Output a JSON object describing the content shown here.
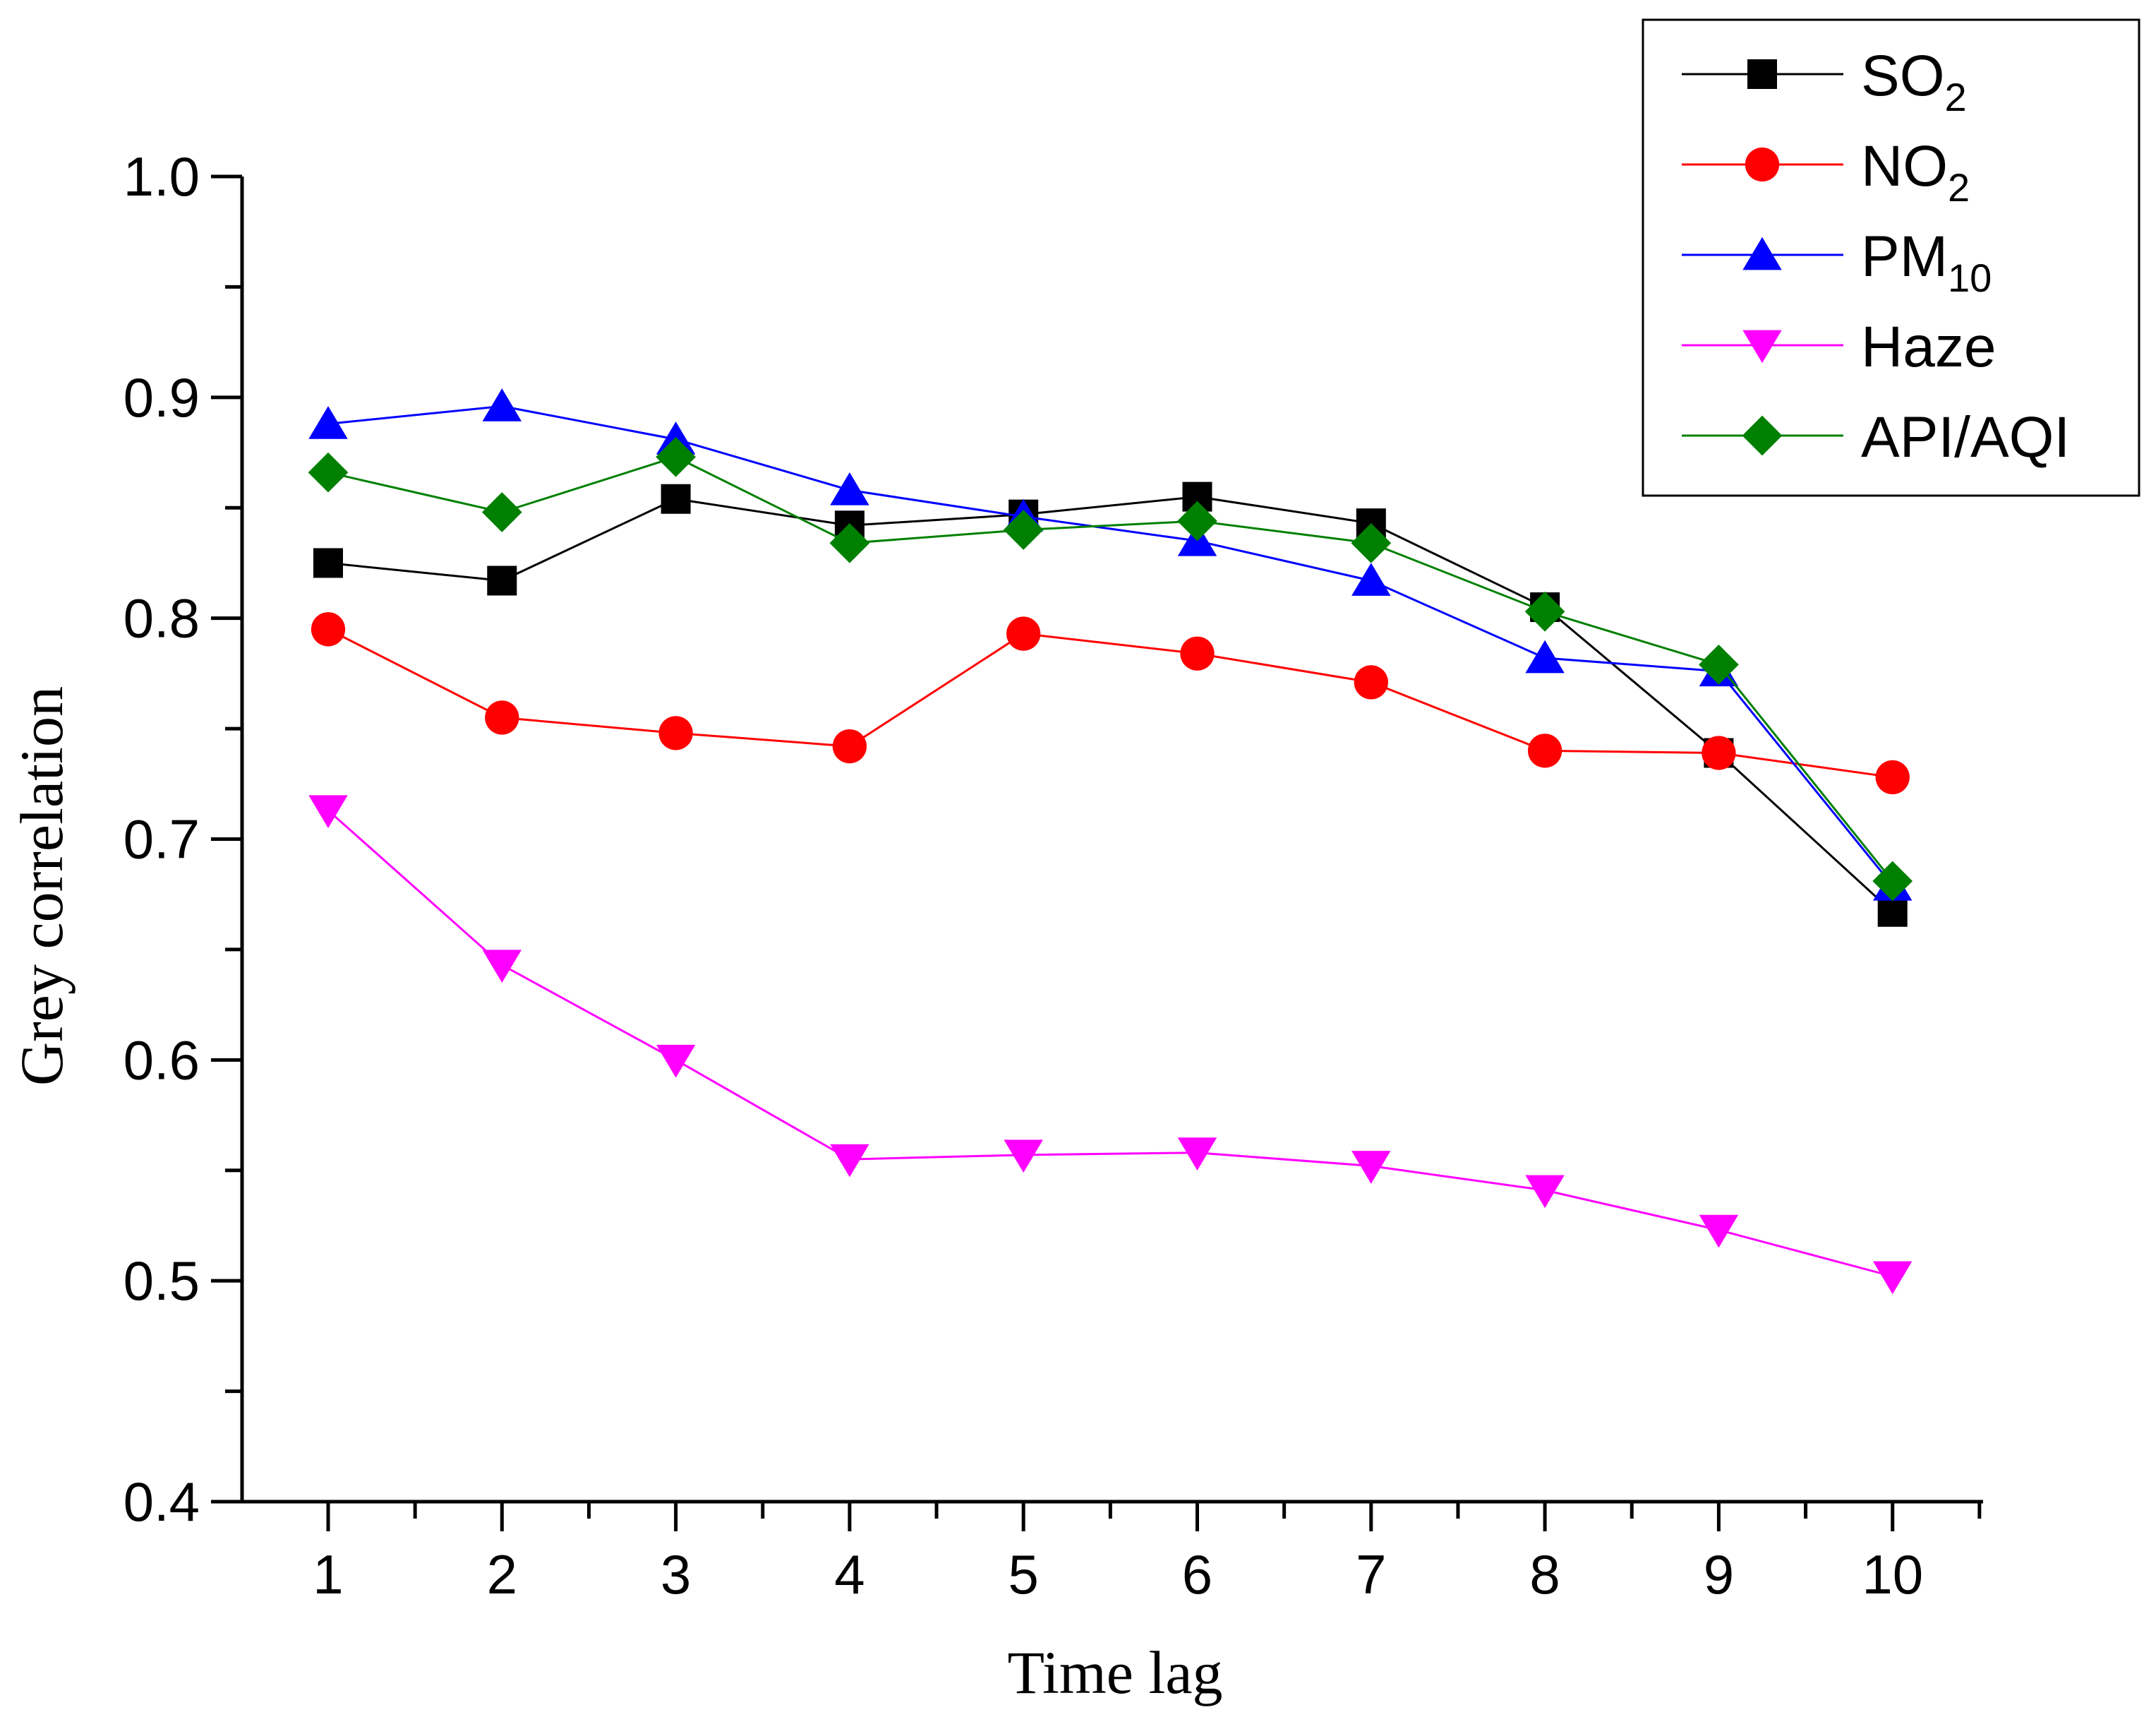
{
  "chart_data": {
    "type": "line",
    "title": "",
    "xlabel": "Time lag",
    "ylabel": "Grey correlation",
    "x": [
      1,
      2,
      3,
      4,
      5,
      6,
      7,
      8,
      9,
      10
    ],
    "xticks": [
      "1",
      "2",
      "3",
      "4",
      "5",
      "6",
      "7",
      "8",
      "9",
      "10"
    ],
    "xlim": [
      0.5,
      10.5
    ],
    "ylim": [
      0.4,
      1.0
    ],
    "yticks": [
      "0.4",
      "0.5",
      "0.6",
      "0.7",
      "0.8",
      "0.9",
      "1.0"
    ],
    "ytick_values": [
      0.4,
      0.5,
      0.6,
      0.7,
      0.8,
      0.9,
      1.0
    ],
    "grid": false,
    "legend_position": "top-right",
    "series": [
      {
        "name": "SO2",
        "label_main": "SO",
        "label_sub": "2",
        "color": "#000000",
        "marker": "square",
        "values": [
          0.825,
          0.817,
          0.854,
          0.842,
          0.847,
          0.855,
          0.843,
          0.805,
          0.739,
          0.667
        ]
      },
      {
        "name": "NO2",
        "label_main": "NO",
        "label_sub": "2",
        "color": "#ff0000",
        "marker": "circle",
        "values": [
          0.795,
          0.755,
          0.748,
          0.742,
          0.793,
          0.784,
          0.771,
          0.74,
          0.739,
          0.728
        ]
      },
      {
        "name": "PM10",
        "label_main": "PM",
        "label_sub": "10",
        "color": "#0000ff",
        "marker": "triangle-up",
        "values": [
          0.888,
          0.896,
          0.881,
          0.858,
          0.846,
          0.835,
          0.817,
          0.782,
          0.776,
          0.679
        ]
      },
      {
        "name": "Haze",
        "label_main": "Haze",
        "label_sub": "",
        "color": "#ff00ff",
        "marker": "triangle-down",
        "values": [
          0.713,
          0.643,
          0.6,
          0.555,
          0.557,
          0.558,
          0.552,
          0.541,
          0.523,
          0.502
        ]
      },
      {
        "name": "API/AQI",
        "label_main": "API/AQI",
        "label_sub": "",
        "color": "#008000",
        "marker": "diamond",
        "values": [
          0.866,
          0.848,
          0.873,
          0.834,
          0.84,
          0.844,
          0.834,
          0.803,
          0.779,
          0.681
        ]
      }
    ]
  }
}
